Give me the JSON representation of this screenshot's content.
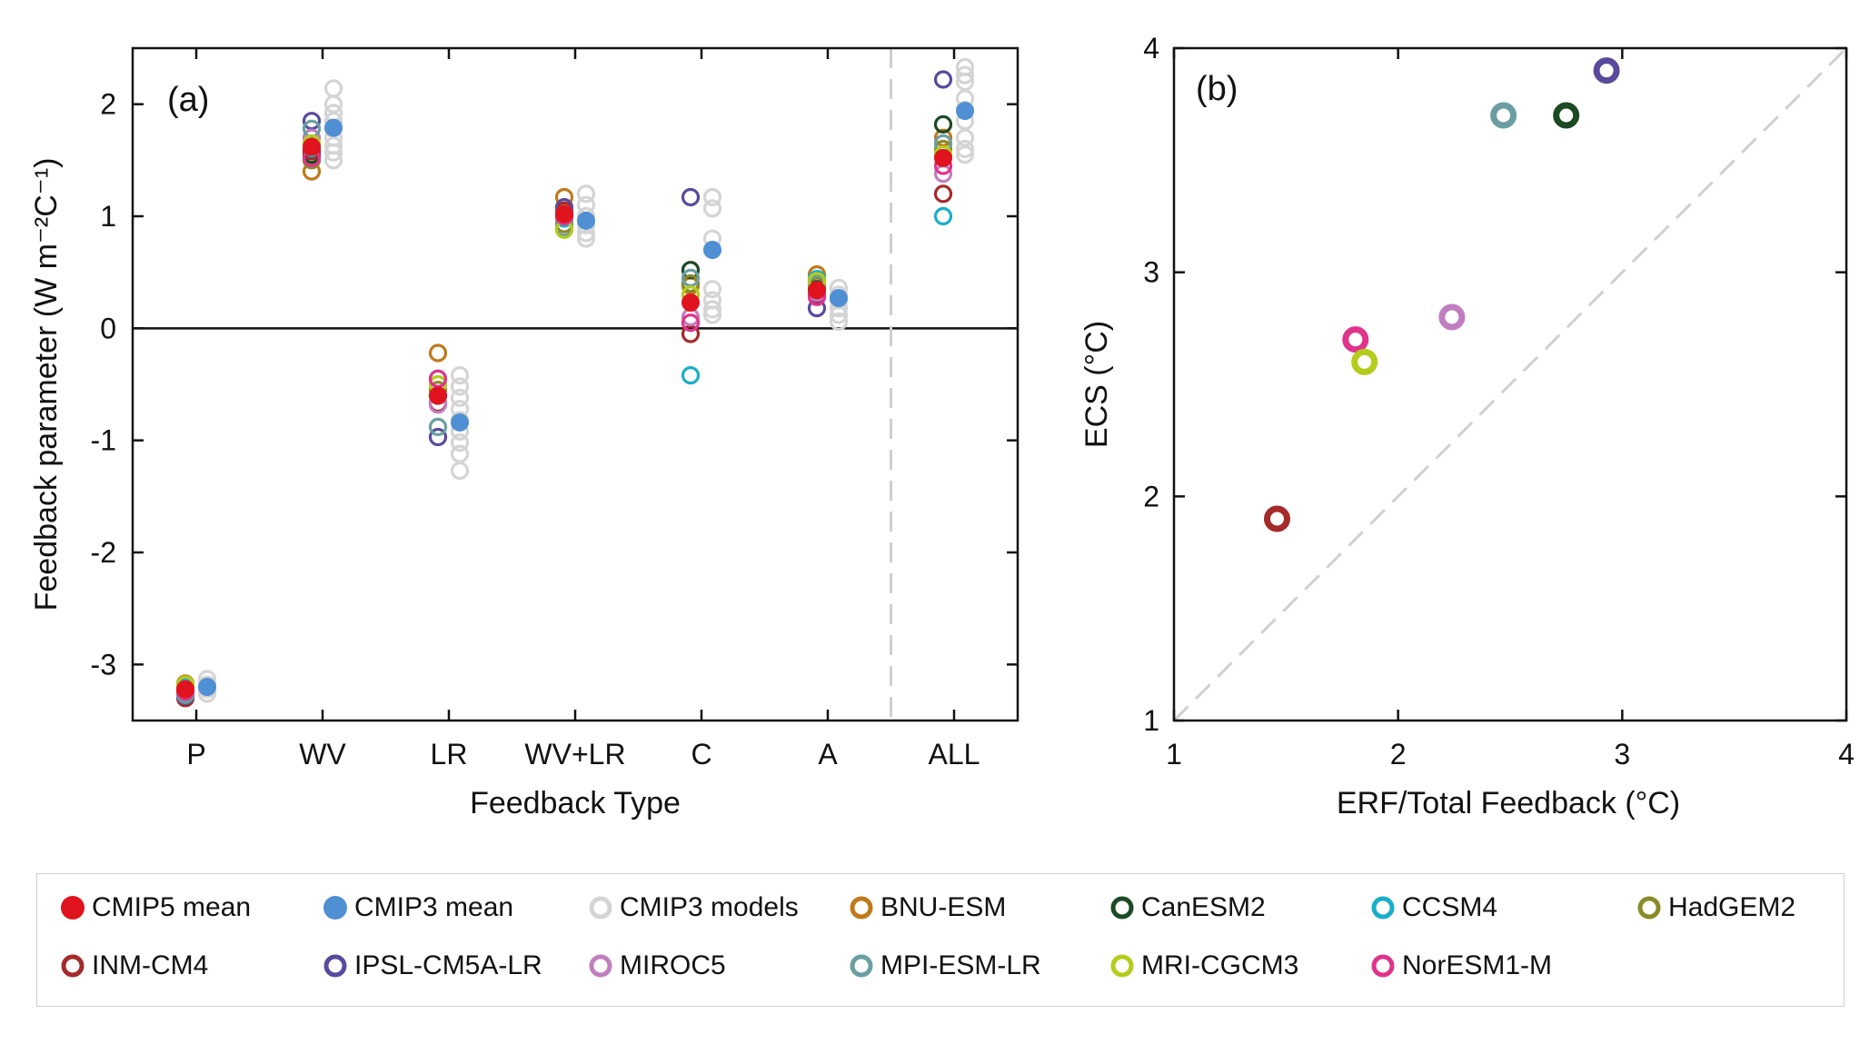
{
  "chart_data": [
    {
      "type": "scatter",
      "panel_label": "(a)",
      "xlabel": "Feedback Type",
      "ylabel": "Feedback parameter (W m⁻²C⁻¹)",
      "ylim": [
        -3.5,
        2.5
      ],
      "yticks": [
        2,
        1,
        0,
        -1,
        -2,
        -3
      ],
      "ytick_labels": [
        "2",
        "1",
        "0",
        "-1",
        "-2",
        "-3"
      ],
      "categories": [
        "P",
        "WV",
        "LR",
        "WV+LR",
        "C",
        "A",
        "ALL"
      ],
      "zero_line": true,
      "separator_before": "ALL",
      "cmip5_models": [
        {
          "name": "BNU-ESM",
          "values": [
            -3.17,
            1.4,
            -0.22,
            1.17,
            0.38,
            0.48,
            1.7
          ]
        },
        {
          "name": "CanESM2",
          "values": [
            -3.23,
            1.55,
            -0.6,
            1.0,
            0.52,
            0.35,
            1.82
          ]
        },
        {
          "name": "CCSM4",
          "values": [
            -3.2,
            1.6,
            -0.45,
            0.98,
            -0.42,
            0.44,
            1.0
          ]
        },
        {
          "name": "HadGEM2",
          "values": [
            -3.25,
            1.5,
            -0.55,
            0.93,
            0.4,
            0.38,
            1.6
          ]
        },
        {
          "name": "INM-CM4",
          "values": [
            -3.3,
            1.58,
            -0.67,
            1.05,
            -0.05,
            0.3,
            1.2
          ]
        },
        {
          "name": "IPSL-CM5A-LR",
          "values": [
            -3.28,
            1.85,
            -0.97,
            1.08,
            1.17,
            0.18,
            2.22
          ]
        },
        {
          "name": "MIROC5",
          "values": [
            -3.22,
            1.7,
            -0.68,
            1.02,
            0.1,
            0.32,
            1.38
          ]
        },
        {
          "name": "MPI-ESM-LR",
          "values": [
            -3.27,
            1.78,
            -0.88,
            0.9,
            0.45,
            0.4,
            1.65
          ]
        },
        {
          "name": "MRI-CGCM3",
          "values": [
            -3.18,
            1.65,
            -0.5,
            0.88,
            0.3,
            0.42,
            1.55
          ]
        },
        {
          "name": "NorESM1-M",
          "values": [
            -3.24,
            1.52,
            -0.45,
            1.0,
            0.05,
            0.28,
            1.45
          ]
        }
      ],
      "cmip5_mean": [
        -3.22,
        1.62,
        -0.6,
        1.02,
        0.23,
        0.34,
        1.52
      ],
      "cmip3_mean": [
        -3.2,
        1.79,
        -0.84,
        0.96,
        0.7,
        0.27,
        1.94
      ],
      "cmip3_models": [
        [
          -3.13,
          -3.18,
          -3.22,
          -3.26
        ],
        [
          2.14,
          2.0,
          1.92,
          1.85,
          1.78,
          1.7,
          1.63,
          1.57,
          1.5
        ],
        [
          -0.42,
          -0.52,
          -0.62,
          -0.72,
          -0.82,
          -0.92,
          -1.02,
          -1.12,
          -1.27
        ],
        [
          1.2,
          1.1,
          1.0,
          0.92,
          0.85,
          0.8
        ],
        [
          1.17,
          1.07,
          0.8,
          0.7,
          0.35,
          0.25,
          0.17,
          0.12
        ],
        [
          0.36,
          0.3,
          0.25,
          0.18,
          0.12,
          0.06
        ],
        [
          2.33,
          2.26,
          2.2,
          2.05,
          1.95,
          1.85,
          1.7,
          1.6,
          1.55
        ]
      ]
    },
    {
      "type": "scatter",
      "panel_label": "(b)",
      "xlabel": "ERF/Total Feedback (°C)",
      "ylabel": "ECS (°C)",
      "xlim": [
        1,
        4
      ],
      "ylim": [
        1,
        4
      ],
      "xticks": [
        1,
        2,
        3,
        4
      ],
      "yticks": [
        1,
        2,
        3,
        4
      ],
      "one_to_one_line": true,
      "points": [
        {
          "name": "INM-CM4",
          "x": 1.46,
          "y": 1.9
        },
        {
          "name": "NorESM1-M",
          "x": 1.81,
          "y": 2.7
        },
        {
          "name": "MRI-CGCM3",
          "x": 1.85,
          "y": 2.6
        },
        {
          "name": "MIROC5",
          "x": 2.24,
          "y": 2.8
        },
        {
          "name": "MPI-ESM-LR",
          "x": 2.47,
          "y": 3.7
        },
        {
          "name": "CanESM2",
          "x": 2.75,
          "y": 3.7
        },
        {
          "name": "IPSL-CM5A-LR",
          "x": 2.93,
          "y": 3.9
        }
      ]
    }
  ],
  "colors": {
    "CMIP5 mean": "#e0141e",
    "CMIP3 mean": "#4f8fd4",
    "CMIP3 models": "#d4d4d4",
    "BNU-ESM": "#c07a1a",
    "CanESM2": "#1c4a22",
    "CCSM4": "#1aaec9",
    "HadGEM2": "#8a8a2a",
    "INM-CM4": "#a52a2a",
    "IPSL-CM5A-LR": "#5a4a9c",
    "MIROC5": "#c07ec0",
    "MPI-ESM-LR": "#6a9ea2",
    "MRI-CGCM3": "#b4cc1a",
    "NorESM1-M": "#e0348c"
  },
  "legend": [
    {
      "label": "CMIP5 mean",
      "style": "filled"
    },
    {
      "label": "CMIP3 mean",
      "style": "filled"
    },
    {
      "label": "CMIP3 models",
      "style": "open"
    },
    {
      "label": "BNU-ESM",
      "style": "open"
    },
    {
      "label": "CanESM2",
      "style": "open"
    },
    {
      "label": "CCSM4",
      "style": "open"
    },
    {
      "label": "HadGEM2",
      "style": "open"
    },
    {
      "label": "INM-CM4",
      "style": "open"
    },
    {
      "label": "IPSL-CM5A-LR",
      "style": "open"
    },
    {
      "label": "MIROC5",
      "style": "open"
    },
    {
      "label": "MPI-ESM-LR",
      "style": "open"
    },
    {
      "label": "MRI-CGCM3",
      "style": "open"
    },
    {
      "label": "NorESM1-M",
      "style": "open"
    }
  ]
}
